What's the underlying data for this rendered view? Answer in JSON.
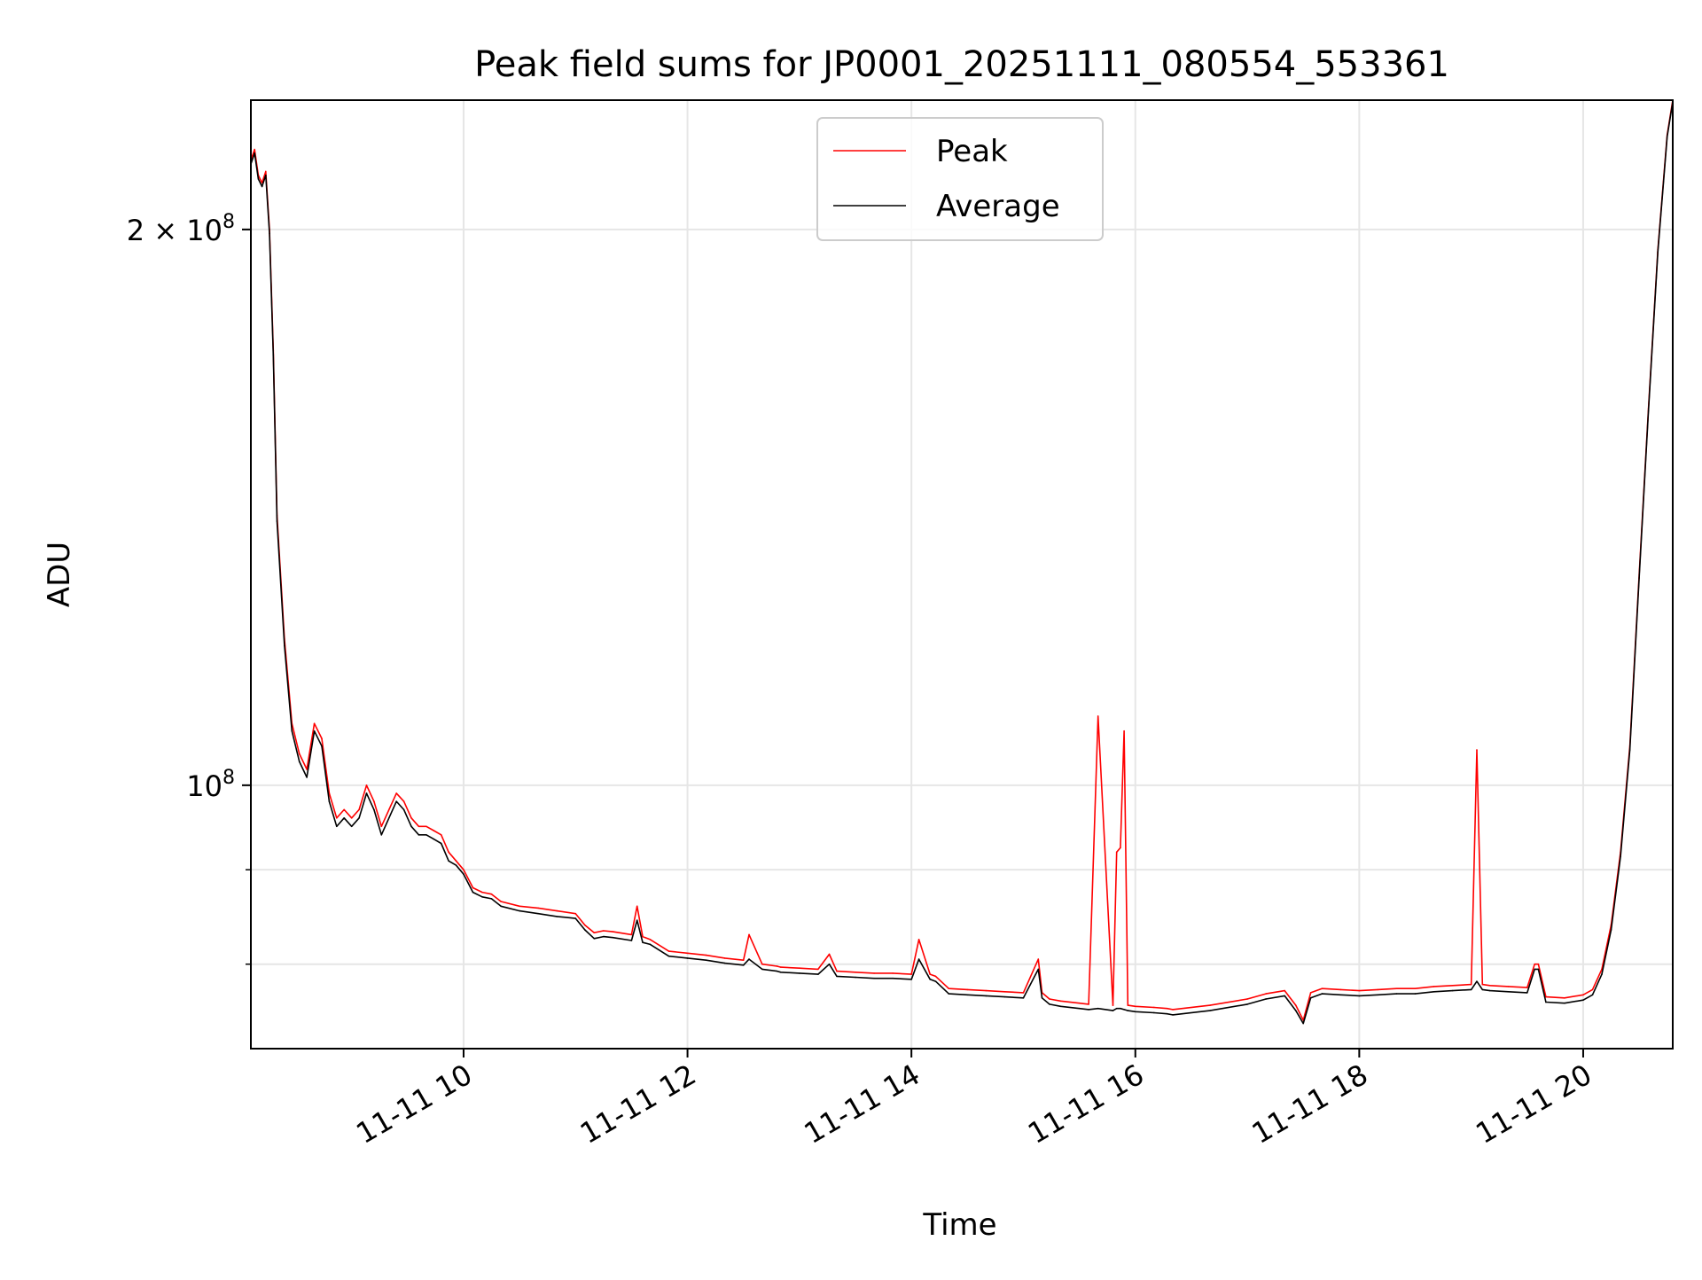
{
  "chart_data": {
    "type": "line",
    "title": "Peak field sums for JP0001_20251111_080554_553361",
    "xlabel": "Time",
    "ylabel": "ADU",
    "x_scale": "time",
    "y_scale": "log",
    "xlim": [
      "2025-11-11 08:06",
      "2025-11-11 20:48"
    ],
    "ylim": [
      72000000,
      235000000
    ],
    "grid": true,
    "legend_position": "top-center",
    "x_ticks": [
      {
        "value": "2025-11-11 10:00",
        "label": "11-11 10"
      },
      {
        "value": "2025-11-11 12:00",
        "label": "11-11 12"
      },
      {
        "value": "2025-11-11 14:00",
        "label": "11-11 14"
      },
      {
        "value": "2025-11-11 16:00",
        "label": "11-11 16"
      },
      {
        "value": "2025-11-11 18:00",
        "label": "11-11 18"
      },
      {
        "value": "2025-11-11 20:00",
        "label": "11-11 20"
      }
    ],
    "y_ticks": [
      {
        "value": 100000000,
        "label_base": "10",
        "label_exp": "8",
        "label_coef": ""
      },
      {
        "value": 200000000,
        "label_base": "10",
        "label_exp": "8",
        "label_coef": "2 × "
      }
    ],
    "y_minor_gridlines": [
      80000000,
      90000000
    ],
    "series": [
      {
        "name": "Peak",
        "color": "#ff0000",
        "x": [
          "08:06",
          "08:08",
          "08:10",
          "08:12",
          "08:14",
          "08:16",
          "08:18",
          "08:20",
          "08:24",
          "08:28",
          "08:32",
          "08:36",
          "08:40",
          "08:44",
          "08:48",
          "08:52",
          "08:56",
          "09:00",
          "09:04",
          "09:08",
          "09:12",
          "09:16",
          "09:20",
          "09:24",
          "09:28",
          "09:32",
          "09:36",
          "09:40",
          "09:44",
          "09:48",
          "09:52",
          "09:56",
          "10:00",
          "10:05",
          "10:10",
          "10:15",
          "10:20",
          "10:30",
          "10:40",
          "10:50",
          "11:00",
          "11:05",
          "11:10",
          "11:15",
          "11:20",
          "11:30",
          "11:33",
          "11:36",
          "11:40",
          "11:50",
          "12:00",
          "12:10",
          "12:20",
          "12:30",
          "12:33",
          "12:40",
          "12:48",
          "12:50",
          "13:00",
          "13:10",
          "13:16",
          "13:20",
          "13:30",
          "13:40",
          "13:50",
          "14:00",
          "14:04",
          "14:10",
          "14:13",
          "14:20",
          "14:30",
          "14:40",
          "14:50",
          "15:00",
          "15:08",
          "15:10",
          "15:14",
          "15:20",
          "15:30",
          "15:35",
          "15:40",
          "15:48",
          "15:50",
          "15:52",
          "15:54",
          "15:56",
          "16:00",
          "16:10",
          "16:17",
          "16:20",
          "16:40",
          "17:00",
          "17:10",
          "17:20",
          "17:26",
          "17:30",
          "17:34",
          "17:40",
          "17:50",
          "18:00",
          "18:10",
          "18:20",
          "18:30",
          "18:40",
          "18:50",
          "19:00",
          "19:03",
          "19:06",
          "19:10",
          "19:20",
          "19:30",
          "19:34",
          "19:36",
          "19:40",
          "19:50",
          "20:00",
          "20:05",
          "20:10",
          "20:15",
          "20:20",
          "20:25",
          "20:30",
          "20:35",
          "20:40",
          "20:45",
          "20:48"
        ],
        "y": [
          218000000,
          221000000,
          214000000,
          212000000,
          215000000,
          200000000,
          172000000,
          140000000,
          120000000,
          108000000,
          104000000,
          102000000,
          108000000,
          106000000,
          99000000,
          96000000,
          97000000,
          96000000,
          97000000,
          100000000,
          98000000,
          95000000,
          97000000,
          99000000,
          98000000,
          96000000,
          95000000,
          95000000,
          94500000,
          94000000,
          92000000,
          91000000,
          90000000,
          88000000,
          87500000,
          87300000,
          86500000,
          86000000,
          85800000,
          85500000,
          85200000,
          84000000,
          83200000,
          83400000,
          83300000,
          83000000,
          86000000,
          82800000,
          82500000,
          81300000,
          81100000,
          80900000,
          80600000,
          80400000,
          83000000,
          80000000,
          79800000,
          79700000,
          79600000,
          79500000,
          81000000,
          79300000,
          79200000,
          79100000,
          79100000,
          79000000,
          82500000,
          79000000,
          78800000,
          77600000,
          77500000,
          77400000,
          77300000,
          77200000,
          80500000,
          77200000,
          76600000,
          76400000,
          76200000,
          76100000,
          109000000,
          76000000,
          92000000,
          92500000,
          107000000,
          76000000,
          75900000,
          75800000,
          75700000,
          75600000,
          76000000,
          76600000,
          77100000,
          77400000,
          76000000,
          74600000,
          77200000,
          77600000,
          77500000,
          77400000,
          77500000,
          77600000,
          77600000,
          77800000,
          77900000,
          78000000,
          104500000,
          78000000,
          77900000,
          77800000,
          77700000,
          80000000,
          80000000,
          76800000,
          76700000,
          77000000,
          77500000,
          79500000,
          84000000,
          92000000,
          105000000,
          130000000,
          160000000,
          195000000,
          225000000,
          235000000
        ]
      },
      {
        "name": "Average",
        "color": "#000000",
        "x": [
          "08:06",
          "08:08",
          "08:10",
          "08:12",
          "08:14",
          "08:16",
          "08:18",
          "08:20",
          "08:24",
          "08:28",
          "08:32",
          "08:36",
          "08:40",
          "08:44",
          "08:48",
          "08:52",
          "08:56",
          "09:00",
          "09:04",
          "09:08",
          "09:12",
          "09:16",
          "09:20",
          "09:24",
          "09:28",
          "09:32",
          "09:36",
          "09:40",
          "09:44",
          "09:48",
          "09:52",
          "09:56",
          "10:00",
          "10:05",
          "10:10",
          "10:15",
          "10:20",
          "10:30",
          "10:40",
          "10:50",
          "11:00",
          "11:05",
          "11:10",
          "11:15",
          "11:20",
          "11:30",
          "11:33",
          "11:36",
          "11:40",
          "11:50",
          "12:00",
          "12:10",
          "12:20",
          "12:30",
          "12:33",
          "12:40",
          "12:48",
          "12:50",
          "13:00",
          "13:10",
          "13:16",
          "13:20",
          "13:30",
          "13:40",
          "13:50",
          "14:00",
          "14:04",
          "14:10",
          "14:13",
          "14:20",
          "14:30",
          "14:40",
          "14:50",
          "15:00",
          "15:08",
          "15:10",
          "15:14",
          "15:20",
          "15:30",
          "15:35",
          "15:40",
          "15:48",
          "15:50",
          "15:52",
          "15:54",
          "15:56",
          "16:00",
          "16:10",
          "16:17",
          "16:20",
          "16:40",
          "17:00",
          "17:10",
          "17:20",
          "17:26",
          "17:30",
          "17:34",
          "17:40",
          "17:50",
          "18:00",
          "18:10",
          "18:20",
          "18:30",
          "18:40",
          "18:50",
          "19:00",
          "19:03",
          "19:06",
          "19:10",
          "19:20",
          "19:30",
          "19:34",
          "19:36",
          "19:40",
          "19:50",
          "20:00",
          "20:05",
          "20:10",
          "20:15",
          "20:20",
          "20:25",
          "20:30",
          "20:35",
          "20:40",
          "20:45",
          "20:48"
        ],
        "y": [
          217000000,
          220000000,
          213000000,
          211000000,
          214000000,
          199000000,
          171000000,
          139000000,
          119000000,
          107000000,
          103000000,
          101000000,
          107000000,
          105000000,
          98000000,
          95000000,
          96000000,
          95000000,
          96000000,
          99000000,
          97000000,
          94000000,
          96000000,
          98000000,
          97000000,
          95000000,
          94000000,
          94000000,
          93500000,
          93000000,
          91000000,
          90500000,
          89500000,
          87500000,
          87000000,
          86800000,
          86000000,
          85500000,
          85200000,
          84900000,
          84700000,
          83500000,
          82600000,
          82800000,
          82700000,
          82400000,
          84500000,
          82200000,
          82000000,
          80800000,
          80600000,
          80400000,
          80100000,
          79900000,
          80500000,
          79500000,
          79300000,
          79200000,
          79100000,
          79000000,
          80000000,
          78800000,
          78700000,
          78600000,
          78600000,
          78500000,
          80500000,
          78500000,
          78300000,
          77100000,
          77000000,
          76900000,
          76800000,
          76700000,
          79500000,
          76700000,
          76100000,
          75900000,
          75700000,
          75600000,
          75700000,
          75500000,
          75700000,
          75700000,
          75600000,
          75500000,
          75400000,
          75300000,
          75200000,
          75100000,
          75500000,
          76100000,
          76600000,
          76900000,
          75500000,
          74300000,
          76700000,
          77100000,
          77000000,
          76900000,
          77000000,
          77100000,
          77100000,
          77300000,
          77400000,
          77500000,
          78300000,
          77500000,
          77400000,
          77300000,
          77200000,
          79500000,
          79500000,
          76300000,
          76200000,
          76500000,
          77000000,
          79000000,
          83500000,
          91500000,
          104500000,
          129500000,
          159500000,
          194500000,
          224500000,
          234500000
        ]
      }
    ]
  }
}
